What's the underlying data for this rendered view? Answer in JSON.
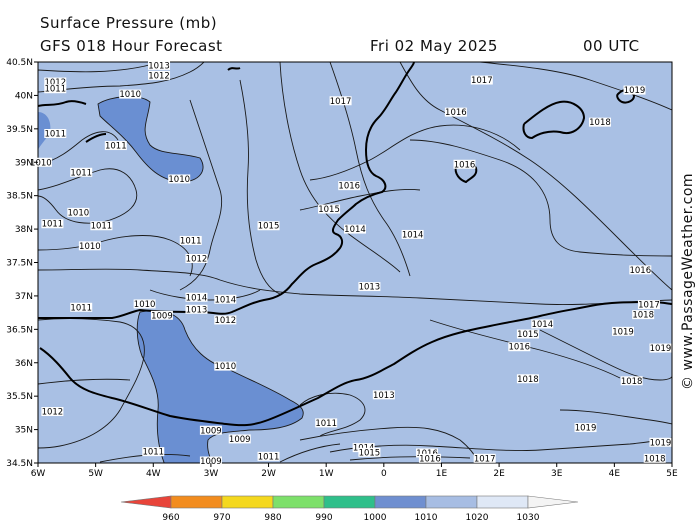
{
  "header": {
    "line1": "Surface Pressure (mb)",
    "line2_left": "GFS 018 Hour Forecast",
    "date": "Fri 02 May 2025",
    "time": "00 UTC"
  },
  "credit": "© www.PassageWeather.com",
  "lat_labels": [
    "40.5N",
    "40N",
    "39.5N",
    "39N",
    "38.5N",
    "38N",
    "37.5N",
    "37N",
    "36.5N",
    "36N",
    "35.5N",
    "35N",
    "34.5N"
  ],
  "lon_labels": [
    "6W",
    "5W",
    "4W",
    "3W",
    "2W",
    "1W",
    "0",
    "1E",
    "2E",
    "3E",
    "4E",
    "5E"
  ],
  "isobar_labels": [
    {
      "text": "1013",
      "lon": -3.9,
      "lat": 40.45
    },
    {
      "text": "1012",
      "lon": -5.7,
      "lat": 40.2
    },
    {
      "text": "1011",
      "lon": -5.7,
      "lat": 40.1
    },
    {
      "text": "1012",
      "lon": -3.9,
      "lat": 40.3
    },
    {
      "text": "1010",
      "lon": -4.4,
      "lat": 40.02
    },
    {
      "text": "1017",
      "lon": 1.7,
      "lat": 40.23
    },
    {
      "text": "1019",
      "lon": 4.35,
      "lat": 40.08
    },
    {
      "text": "1017",
      "lon": -0.75,
      "lat": 39.92
    },
    {
      "text": "1016",
      "lon": 1.25,
      "lat": 39.75
    },
    {
      "text": "1018",
      "lon": 3.75,
      "lat": 39.6
    },
    {
      "text": "1011",
      "lon": -5.7,
      "lat": 39.43
    },
    {
      "text": "1011",
      "lon": -4.65,
      "lat": 39.25
    },
    {
      "text": "1010",
      "lon": -5.95,
      "lat": 39.0
    },
    {
      "text": "1011",
      "lon": -5.25,
      "lat": 38.85
    },
    {
      "text": "1010",
      "lon": -3.55,
      "lat": 38.75
    },
    {
      "text": "1016",
      "lon": 1.4,
      "lat": 38.97
    },
    {
      "text": "1016",
      "lon": -0.6,
      "lat": 38.65
    },
    {
      "text": "1015",
      "lon": -0.95,
      "lat": 38.3
    },
    {
      "text": "1010",
      "lon": -5.3,
      "lat": 38.25
    },
    {
      "text": "1011",
      "lon": -5.75,
      "lat": 38.08
    },
    {
      "text": "1011",
      "lon": -4.9,
      "lat": 38.05
    },
    {
      "text": "1015",
      "lon": -2.0,
      "lat": 38.05
    },
    {
      "text": "1014",
      "lon": -0.5,
      "lat": 38.0
    },
    {
      "text": "1014",
      "lon": 0.5,
      "lat": 37.92
    },
    {
      "text": "1011",
      "lon": -3.35,
      "lat": 37.83
    },
    {
      "text": "1010",
      "lon": -5.1,
      "lat": 37.75
    },
    {
      "text": "1012",
      "lon": -3.25,
      "lat": 37.56
    },
    {
      "text": "1016",
      "lon": 4.45,
      "lat": 37.39
    },
    {
      "text": "1013",
      "lon": -0.25,
      "lat": 37.14
    },
    {
      "text": "1014",
      "lon": -3.25,
      "lat": 36.98
    },
    {
      "text": "1014",
      "lon": -2.75,
      "lat": 36.95
    },
    {
      "text": "1011",
      "lon": -5.25,
      "lat": 36.83
    },
    {
      "text": "1010",
      "lon": -4.15,
      "lat": 36.88
    },
    {
      "text": "1013",
      "lon": -3.25,
      "lat": 36.8
    },
    {
      "text": "1009",
      "lon": -3.85,
      "lat": 36.71
    },
    {
      "text": "1012",
      "lon": -2.75,
      "lat": 36.64
    },
    {
      "text": "1017",
      "lon": 4.6,
      "lat": 36.87
    },
    {
      "text": "1018",
      "lon": 4.5,
      "lat": 36.72
    },
    {
      "text": "1014",
      "lon": 2.75,
      "lat": 36.58
    },
    {
      "text": "1015",
      "lon": 2.5,
      "lat": 36.43
    },
    {
      "text": "1019",
      "lon": 4.15,
      "lat": 36.47
    },
    {
      "text": "1016",
      "lon": 2.35,
      "lat": 36.24
    },
    {
      "text": "1019",
      "lon": 4.8,
      "lat": 36.22
    },
    {
      "text": "1010",
      "lon": -2.75,
      "lat": 35.95
    },
    {
      "text": "1018",
      "lon": 2.5,
      "lat": 35.76
    },
    {
      "text": "1018",
      "lon": 4.3,
      "lat": 35.73
    },
    {
      "text": "1013",
      "lon": 0.0,
      "lat": 35.52
    },
    {
      "text": "1012",
      "lon": -5.75,
      "lat": 35.27
    },
    {
      "text": "1011",
      "lon": -1.0,
      "lat": 35.1
    },
    {
      "text": "1009",
      "lon": -3.0,
      "lat": 34.99
    },
    {
      "text": "1009",
      "lon": -2.5,
      "lat": 34.86
    },
    {
      "text": "1019",
      "lon": 3.5,
      "lat": 35.03
    },
    {
      "text": "1019",
      "lon": 4.8,
      "lat": 34.81
    },
    {
      "text": "1014",
      "lon": -0.35,
      "lat": 34.73
    },
    {
      "text": "1015",
      "lon": -0.25,
      "lat": 34.66
    },
    {
      "text": "1016",
      "lon": 0.75,
      "lat": 34.65
    },
    {
      "text": "1016",
      "lon": 0.8,
      "lat": 34.57
    },
    {
      "text": "1017",
      "lon": 1.75,
      "lat": 34.57
    },
    {
      "text": "1018",
      "lon": 4.7,
      "lat": 34.57
    },
    {
      "text": "1011",
      "lon": -4.0,
      "lat": 34.67
    },
    {
      "text": "1011",
      "lon": -2.0,
      "lat": 34.6
    },
    {
      "text": "1009",
      "lon": -3.0,
      "lat": 34.53
    }
  ],
  "color_scale": {
    "ticks": [
      "960",
      "970",
      "980",
      "990",
      "1000",
      "1010",
      "1020",
      "1030"
    ],
    "colors": [
      "#e8443a",
      "#f28c1e",
      "#f4d81e",
      "#7de06a",
      "#2fbf8a",
      "#6f8fd0",
      "#a7bde3",
      "#dfe8f6",
      "#f4f4f4"
    ]
  },
  "colors": {
    "low_shade": "#6a8fd2",
    "base_shade": "#a9c0e4",
    "isobar": "#1a1a1a",
    "coast": "#000000"
  }
}
